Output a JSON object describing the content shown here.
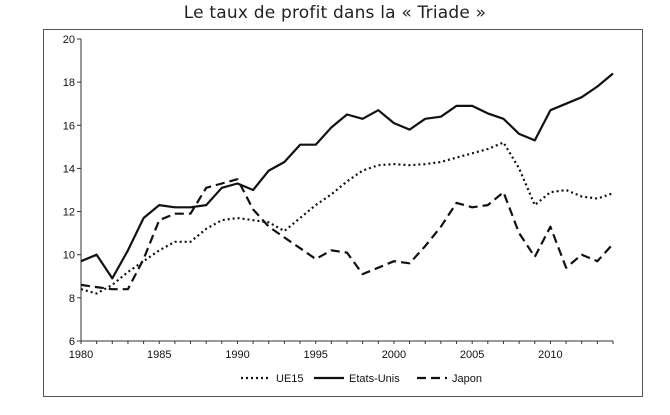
{
  "chart_data": {
    "type": "line",
    "title": "Le taux de profit dans la « Triade »",
    "xlabel": "",
    "ylabel": "",
    "xlim": [
      1980,
      2014
    ],
    "ylim": [
      6,
      20
    ],
    "xticks": [
      1980,
      1985,
      1990,
      1995,
      2000,
      2005,
      2010
    ],
    "yticks": [
      6,
      8,
      10,
      12,
      14,
      16,
      18,
      20
    ],
    "grid": false,
    "legend": "bottom",
    "x": [
      1980,
      1981,
      1982,
      1983,
      1984,
      1985,
      1986,
      1987,
      1988,
      1989,
      1990,
      1991,
      1992,
      1993,
      1994,
      1995,
      1996,
      1997,
      1998,
      1999,
      2000,
      2001,
      2002,
      2003,
      2004,
      2005,
      2006,
      2007,
      2008,
      2009,
      2010,
      2011,
      2012,
      2013,
      2014
    ],
    "series": [
      {
        "name": "UE15",
        "style": "dotted",
        "values": [
          8.4,
          8.2,
          8.6,
          9.2,
          9.7,
          10.2,
          10.6,
          10.6,
          11.2,
          11.6,
          11.7,
          11.6,
          11.5,
          11.1,
          11.7,
          12.3,
          12.8,
          13.4,
          13.9,
          14.15,
          14.2,
          14.15,
          14.2,
          14.3,
          14.5,
          14.7,
          14.9,
          15.2,
          14.0,
          12.3,
          12.9,
          13.0,
          12.7,
          12.6,
          12.85
        ]
      },
      {
        "name": "Etats-Unis",
        "style": "solid",
        "values": [
          9.7,
          10.0,
          8.9,
          10.2,
          11.7,
          12.3,
          12.2,
          12.2,
          12.3,
          13.1,
          13.3,
          13.0,
          13.9,
          14.3,
          15.1,
          15.1,
          15.9,
          16.5,
          16.3,
          16.7,
          16.1,
          15.8,
          16.3,
          16.4,
          16.9,
          16.9,
          16.55,
          16.3,
          15.6,
          15.3,
          16.7,
          17.0,
          17.3,
          17.8,
          18.4
        ]
      },
      {
        "name": "Japon",
        "style": "dashed",
        "values": [
          8.6,
          8.5,
          8.4,
          8.4,
          9.8,
          11.6,
          11.9,
          11.9,
          13.1,
          13.3,
          13.5,
          12.1,
          11.3,
          10.8,
          10.3,
          9.8,
          10.2,
          10.1,
          9.1,
          9.4,
          9.7,
          9.6,
          10.4,
          11.3,
          12.4,
          12.2,
          12.3,
          12.9,
          11.0,
          9.9,
          11.3,
          9.4,
          10.0,
          9.7,
          10.5
        ]
      }
    ]
  }
}
